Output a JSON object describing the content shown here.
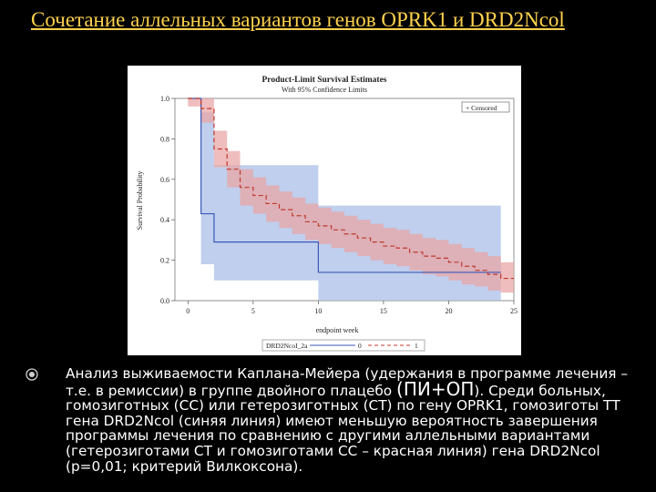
{
  "slide": {
    "title": "Сочетание аллельных вариантов генов OPRK1 и DRD2Ncol",
    "bullet": {
      "text_before": "Анализ выживаемости Каплана-Мейера (удержания в программе лечения – т.е. в ремиссии) в группе двойного плацебо ",
      "highlight": "(ПИ+ОП",
      "text_after": "). Среди больных, гомозиготных (СС) или гетерозиготных (СТ) по гену OPRK1, гомозиготы ТТ гена DRD2Ncol (синяя линия) имеют меньшую вероятность завершения программы лечения по сравнению с другими аллельными вариантами (гетерозиготами СТ и гомозиготами СС – красная линия) гена DRD2Ncol (p=0,01; критерий Вилкоксона)."
    }
  },
  "chart_data": {
    "type": "line",
    "step": true,
    "title": "Product-Limit Survival Estimates",
    "subtitle": "With 95% Confidence Limits",
    "xlabel": "endpoint week",
    "ylabel": "Survival Probability",
    "xlim": [
      -1,
      25
    ],
    "ylim": [
      0,
      1
    ],
    "xticks": [
      0,
      5,
      10,
      15,
      20,
      25
    ],
    "yticks": [
      0.0,
      0.2,
      0.4,
      0.6,
      0.8,
      1.0
    ],
    "ytick_labels": [
      "0.0",
      "0.2",
      "0.4",
      "0.6",
      "0.8",
      "1.0"
    ],
    "grid": false,
    "censored_legend": "+ Censored",
    "legend": {
      "title": "DRD2NcoI_2a",
      "placement": "bottom",
      "entries": [
        "0",
        "1"
      ]
    },
    "colors": {
      "red": "#c0392b",
      "red_band": "#e9a3a3",
      "blue": "#3a58b8",
      "blue_band": "#a8bce6"
    },
    "series": [
      {
        "name": "1",
        "color": "red",
        "x": [
          0,
          1,
          2,
          3,
          4,
          5,
          6,
          7,
          8,
          9,
          10,
          11,
          12,
          13,
          14,
          15,
          16,
          17,
          18,
          19,
          20,
          21,
          22,
          23,
          24,
          25
        ],
        "y": [
          1.0,
          0.95,
          0.75,
          0.65,
          0.56,
          0.52,
          0.48,
          0.45,
          0.42,
          0.39,
          0.37,
          0.35,
          0.33,
          0.31,
          0.29,
          0.27,
          0.26,
          0.24,
          0.22,
          0.21,
          0.19,
          0.17,
          0.15,
          0.13,
          0.11,
          0.11
        ],
        "lower": [
          0.96,
          0.88,
          0.66,
          0.56,
          0.47,
          0.43,
          0.39,
          0.36,
          0.33,
          0.3,
          0.28,
          0.26,
          0.24,
          0.22,
          0.2,
          0.18,
          0.17,
          0.15,
          0.13,
          0.12,
          0.1,
          0.08,
          0.07,
          0.05,
          0.04,
          0.04
        ],
        "upper": [
          1.0,
          1.0,
          0.84,
          0.74,
          0.65,
          0.61,
          0.57,
          0.54,
          0.51,
          0.48,
          0.46,
          0.44,
          0.42,
          0.4,
          0.38,
          0.36,
          0.35,
          0.33,
          0.31,
          0.3,
          0.28,
          0.26,
          0.24,
          0.22,
          0.19,
          0.19
        ]
      },
      {
        "name": "0",
        "color": "blue",
        "x": [
          0,
          1,
          2,
          10,
          24
        ],
        "y": [
          1.0,
          0.43,
          0.29,
          0.14,
          0.14
        ],
        "lower": [
          1.0,
          0.18,
          0.1,
          0.0,
          0.0
        ],
        "upper": [
          1.0,
          0.93,
          0.67,
          0.47,
          0.47
        ]
      }
    ]
  }
}
